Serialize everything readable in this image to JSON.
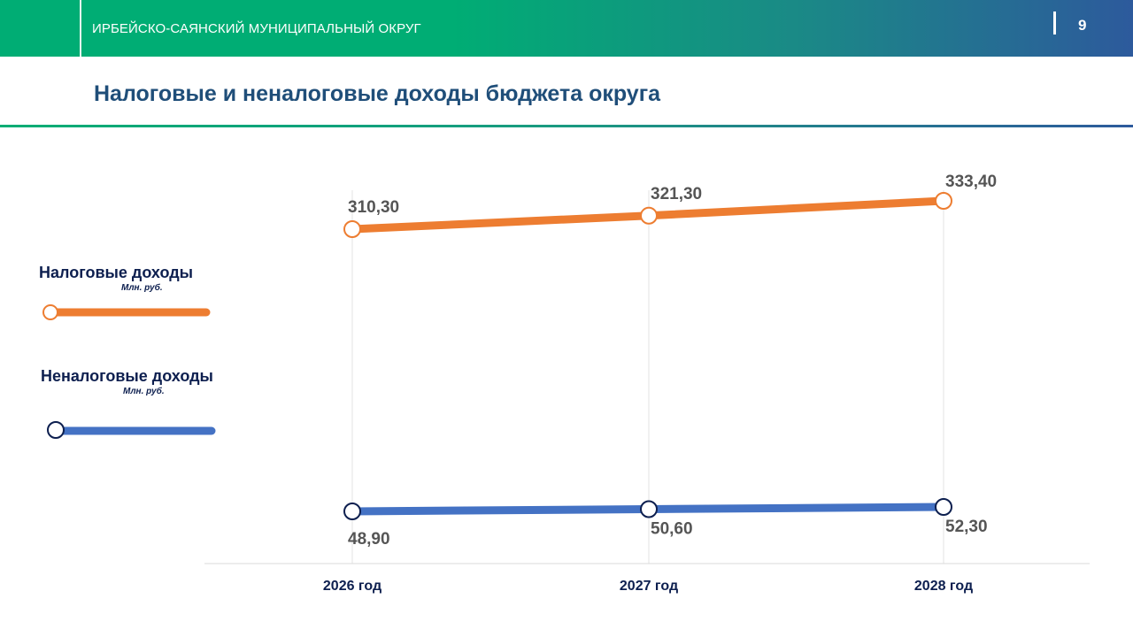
{
  "header": {
    "org_name": "ИРБЕЙСКО-САЯНСКИЙ МУНИЦИПАЛЬНЫЙ ОКРУГ",
    "page_number": "9"
  },
  "slide": {
    "title": "Налоговые и неналоговые доходы бюджета округа"
  },
  "legend": [
    {
      "name": "Налоговые доходы",
      "unit": "Млн. руб."
    },
    {
      "name": "Неналоговые доходы",
      "unit": "Млн. руб."
    }
  ],
  "colors": {
    "tax": "#ed7d31",
    "nontax": "#4472c4",
    "header_green": "#00ad74",
    "header_blue": "#2d5a9c",
    "title": "#1f4e79"
  },
  "chart_data": {
    "type": "line",
    "categories": [
      "2026 год",
      "2027 год",
      "2028 год"
    ],
    "series": [
      {
        "name": "Налоговые доходы",
        "values": [
          310.3,
          321.3,
          333.4
        ],
        "labels": [
          "310,30",
          "321,30",
          "333,40"
        ]
      },
      {
        "name": "Неналоговые доходы",
        "values": [
          48.9,
          50.6,
          52.3
        ],
        "labels": [
          "48,90",
          "50,60",
          "52,30"
        ]
      }
    ],
    "title": "",
    "xlabel": "",
    "ylabel": "",
    "grid": "vertical",
    "legend_position": "left"
  }
}
